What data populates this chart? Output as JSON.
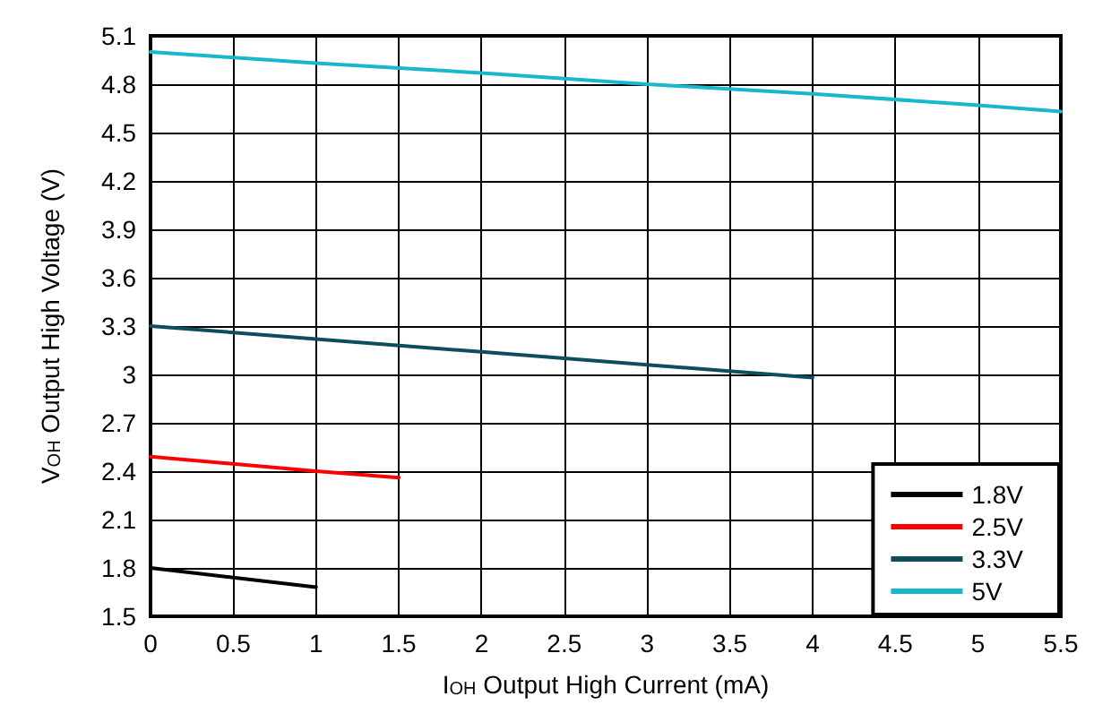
{
  "chart_data": {
    "type": "line",
    "xlabel": "I$_{OH}$ Output High Current (mA)",
    "ylabel": "V$_{OH}$ Output High Voltage (V)",
    "xlim": [
      0,
      5.5
    ],
    "xticks": [
      0,
      0.5,
      1,
      1.5,
      2,
      2.5,
      3,
      3.5,
      4,
      4.5,
      5,
      5.5
    ],
    "ylim": [
      1.5,
      5.1
    ],
    "yticks": [
      1.5,
      1.8,
      2.1,
      2.4,
      2.7,
      3,
      3.3,
      3.6,
      3.9,
      4.2,
      4.5,
      4.8,
      5.1
    ],
    "grid": true,
    "legend": "bottom right",
    "marker": "none",
    "line_style": "solid",
    "series": [
      {
        "name": "1.8V",
        "color": "#000000",
        "x": [
          0,
          0.5,
          1
        ],
        "values": [
          1.8,
          1.74,
          1.68
        ]
      },
      {
        "name": "2.5V",
        "color": "#ff0000",
        "x": [
          0,
          1,
          1.5
        ],
        "values": [
          2.49,
          2.4,
          2.36
        ]
      },
      {
        "name": "3.3V",
        "color": "#0e4d5f",
        "x": [
          0,
          1,
          2,
          3,
          4
        ],
        "values": [
          3.3,
          3.22,
          3.14,
          3.06,
          2.98
        ]
      },
      {
        "name": "5V",
        "color": "#17b8cc",
        "x": [
          0,
          1,
          2,
          3,
          4,
          5,
          5.5
        ],
        "values": [
          5.0,
          4.93,
          4.87,
          4.8,
          4.74,
          4.67,
          4.63
        ]
      }
    ]
  }
}
